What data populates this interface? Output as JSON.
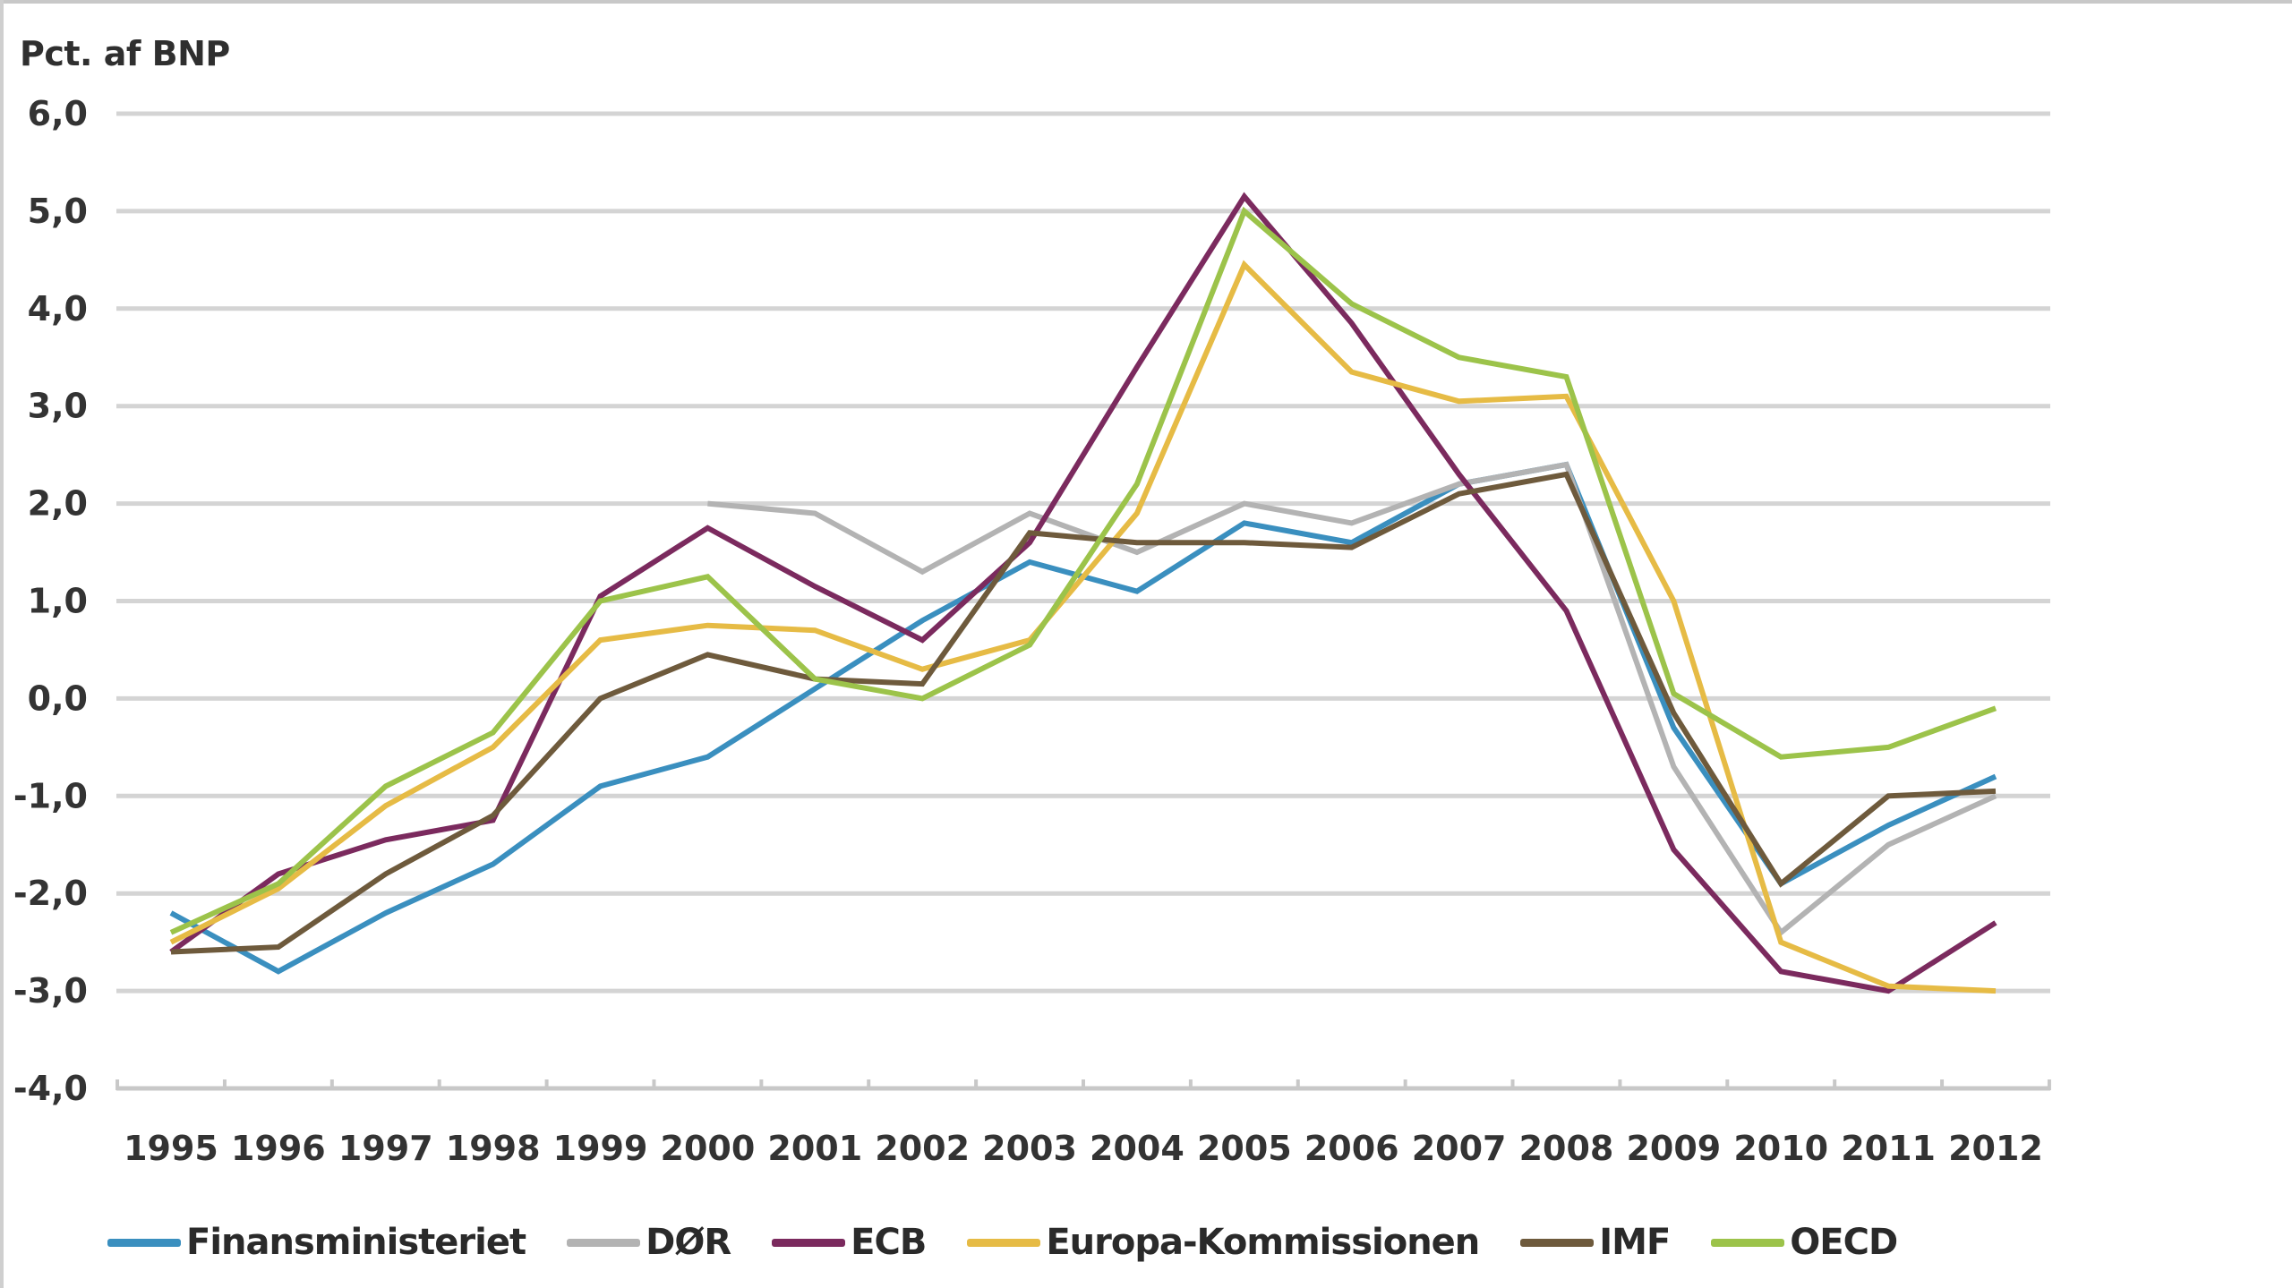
{
  "chart_data": {
    "type": "line",
    "title": "",
    "ylabel": "Pct. af BNP",
    "xlabel": "",
    "ylim": [
      -4.0,
      6.0
    ],
    "yticks": [
      "6,0",
      "5,0",
      "4,0",
      "3,0",
      "2,0",
      "1,0",
      "0,0",
      "-1,0",
      "-2,0",
      "-3,0",
      "-4,0"
    ],
    "ytick_values": [
      6,
      5,
      4,
      3,
      2,
      1,
      0,
      -1,
      -2,
      -3,
      -4
    ],
    "grid": true,
    "legend_position": "bottom",
    "categories": [
      "1995",
      "1996",
      "1997",
      "1998",
      "1999",
      "2000",
      "2001",
      "2002",
      "2003",
      "2004",
      "2005",
      "2006",
      "2007",
      "2008",
      "2009",
      "2010",
      "2011",
      "2012"
    ],
    "series": [
      {
        "name": "Finansministeriet",
        "color": "#3a8fbf",
        "values": [
          -2.2,
          -2.8,
          -2.2,
          -1.7,
          -0.9,
          -0.6,
          0.1,
          0.8,
          1.4,
          1.1,
          1.8,
          1.6,
          2.2,
          2.4,
          -0.3,
          -1.9,
          -1.3,
          -0.8
        ]
      },
      {
        "name": "DØR",
        "color": "#b3b3b3",
        "values": [
          null,
          null,
          null,
          null,
          null,
          2.0,
          1.9,
          1.3,
          1.9,
          1.5,
          2.0,
          1.8,
          2.2,
          2.4,
          -0.7,
          -2.4,
          -1.5,
          -1.0
        ]
      },
      {
        "name": "ECB",
        "color": "#7b2a5e",
        "values": [
          -2.6,
          -1.8,
          -1.45,
          -1.25,
          1.05,
          1.75,
          1.15,
          0.6,
          1.6,
          3.4,
          5.15,
          3.85,
          2.3,
          0.9,
          -1.55,
          -2.8,
          -3.0,
          -2.3
        ]
      },
      {
        "name": "Europa-Kommissionen",
        "color": "#e6bb45",
        "values": [
          -2.5,
          -1.95,
          -1.1,
          -0.5,
          0.6,
          0.75,
          0.7,
          0.3,
          0.6,
          1.9,
          4.45,
          3.35,
          3.05,
          3.1,
          1.0,
          -2.5,
          -2.95,
          -3.0
        ]
      },
      {
        "name": "IMF",
        "color": "#6e5a3c",
        "values": [
          -2.6,
          -2.55,
          -1.8,
          -1.2,
          0.0,
          0.45,
          0.2,
          0.15,
          1.7,
          1.6,
          1.6,
          1.55,
          2.1,
          2.3,
          -0.15,
          -1.9,
          -1.0,
          -0.95
        ]
      },
      {
        "name": "OECD",
        "color": "#9cc34a",
        "values": [
          -2.4,
          -1.9,
          -0.9,
          -0.35,
          1.0,
          1.25,
          0.2,
          0.0,
          0.55,
          2.2,
          5.0,
          4.05,
          3.5,
          3.3,
          0.05,
          -0.6,
          -0.5,
          -0.1
        ]
      }
    ]
  },
  "axis": {
    "y_title": "Pct. af BNP"
  },
  "legend": {
    "items": [
      {
        "label": "Finansministeriet",
        "color": "#3a8fbf"
      },
      {
        "label": "DØR",
        "color": "#b3b3b3"
      },
      {
        "label": "ECB",
        "color": "#7b2a5e"
      },
      {
        "label": "Europa-Kommissionen",
        "color": "#e6bb45"
      },
      {
        "label": "IMF",
        "color": "#6e5a3c"
      },
      {
        "label": "OECD",
        "color": "#9cc34a"
      }
    ]
  },
  "style": {
    "gridline_color": "#d4d4d4",
    "axis_color": "#c8c8c8"
  }
}
